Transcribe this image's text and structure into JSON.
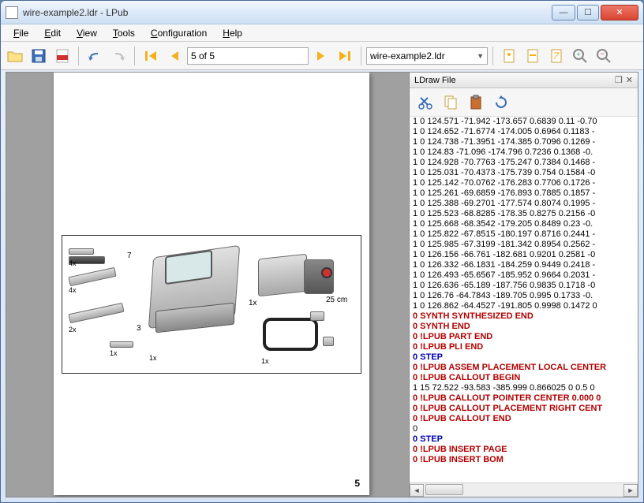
{
  "window": {
    "title": "wire-example2.ldr - LPub"
  },
  "menu": {
    "file": "File",
    "edit": "Edit",
    "view": "View",
    "tools": "Tools",
    "config": "Configuration",
    "help": "Help"
  },
  "toolbar": {
    "page_text": "5 of 5",
    "dropdown": "wire-example2.ldr"
  },
  "page": {
    "number": "5"
  },
  "parts": {
    "p1": "4x",
    "p2": "4x",
    "p3": "2x",
    "p4": "1x",
    "p5": "1x",
    "p6": "1x",
    "p7": "1x",
    "n7": "7",
    "n3": "3",
    "len": "25 cm"
  },
  "panel": {
    "title": "LDraw File"
  },
  "code": [
    {
      "c": "blk",
      "t": "1 0 124.571 -71.942 -173.657 0.6839 0.11 -0.70"
    },
    {
      "c": "blk",
      "t": "1 0 124.652 -71.6774 -174.005 0.6964 0.1183 -"
    },
    {
      "c": "blk",
      "t": "1 0 124.738 -71.3951 -174.385 0.7096 0.1269 -"
    },
    {
      "c": "blk",
      "t": "1 0 124.83 -71.096 -174.796 0.7236 0.1368 -0."
    },
    {
      "c": "blk",
      "t": "1 0 124.928 -70.7763 -175.247 0.7384 0.1468 -"
    },
    {
      "c": "blk",
      "t": "1 0 125.031 -70.4373 -175.739 0.754 0.1584 -0"
    },
    {
      "c": "blk",
      "t": "1 0 125.142 -70.0762 -176.283 0.7706 0.1726 -"
    },
    {
      "c": "blk",
      "t": "1 0 125.261 -69.6859 -176.893 0.7885 0.1857 -"
    },
    {
      "c": "blk",
      "t": "1 0 125.388 -69.2701 -177.574 0.8074 0.1995 -"
    },
    {
      "c": "blk",
      "t": "1 0 125.523 -68.8285 -178.35 0.8275 0.2156 -0"
    },
    {
      "c": "blk",
      "t": "1 0 125.668 -68.3542 -179.205 0.8489 0.23 -0."
    },
    {
      "c": "blk",
      "t": "1 0 125.822 -67.8515 -180.197 0.8716 0.2441 -"
    },
    {
      "c": "blk",
      "t": "1 0 125.985 -67.3199 -181.342 0.8954 0.2562 -"
    },
    {
      "c": "blk",
      "t": "1 0 126.156 -66.761 -182.681 0.9201 0.2581 -0"
    },
    {
      "c": "blk",
      "t": "1 0 126.332 -66.1831 -184.259 0.9449 0.2418 -"
    },
    {
      "c": "blk",
      "t": "1 0 126.493 -65.6567 -185.952 0.9664 0.2031 -"
    },
    {
      "c": "blk",
      "t": "1 0 126.636 -65.189 -187.756 0.9835 0.1718 -0"
    },
    {
      "c": "blk",
      "t": "1 0 126.76 -64.7843 -189.705 0.995 0.1733 -0."
    },
    {
      "c": "blk",
      "t": "1 0 126.862 -64.4527 -191.805 0.9998 0.1472 0"
    },
    {
      "c": "red",
      "t": "0 SYNTH SYNTHESIZED END"
    },
    {
      "c": "red",
      "t": "0 SYNTH END"
    },
    {
      "c": "red",
      "t": "0 !LPUB PART END"
    },
    {
      "c": "red",
      "t": "0 !LPUB PLI END"
    },
    {
      "c": "blue",
      "t": "0 STEP"
    },
    {
      "c": "red",
      "t": "0 !LPUB ASSEM PLACEMENT LOCAL CENTER"
    },
    {
      "c": "red",
      "t": "0 !LPUB CALLOUT BEGIN"
    },
    {
      "c": "blk",
      "t": "1 15 72.522 -93.583 -385.999 0.866025 0 0.5 0"
    },
    {
      "c": "red",
      "t": "0 !LPUB CALLOUT POINTER CENTER 0.000 0"
    },
    {
      "c": "red",
      "t": "0 !LPUB CALLOUT PLACEMENT RIGHT CENT"
    },
    {
      "c": "red",
      "t": "0 !LPUB CALLOUT END"
    },
    {
      "c": "blk",
      "t": "0"
    },
    {
      "c": "blue",
      "t": "0 STEP"
    },
    {
      "c": "red",
      "t": "0 !LPUB INSERT PAGE"
    },
    {
      "c": "red",
      "t": "0 !LPUB INSERT BOM"
    }
  ]
}
